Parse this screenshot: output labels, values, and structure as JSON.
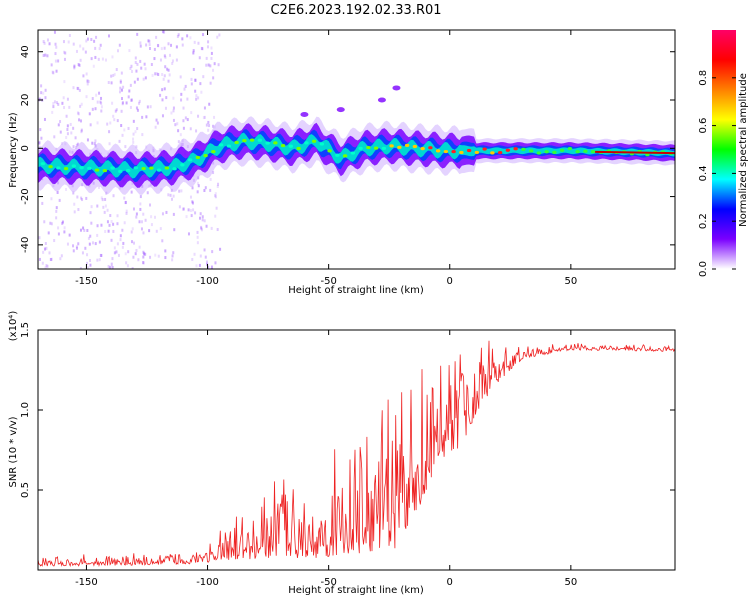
{
  "title": "C2E6.2023.192.02.33.R01",
  "chart_data": [
    {
      "type": "heatmap",
      "xlabel": "Height of straight line (km)",
      "ylabel": "Frequency (Hz)",
      "xlim": [
        -170,
        93
      ],
      "ylim": [
        -50,
        49
      ],
      "xticks": [
        -150,
        -100,
        -50,
        0,
        50
      ],
      "xtick_labels": [
        "-150",
        "-100",
        "-50",
        "0",
        "50"
      ],
      "yticks": [
        -40,
        -20,
        0,
        20,
        40
      ],
      "ytick_labels": [
        "-40",
        "-20",
        "0",
        "20",
        "40"
      ],
      "colorbar": {
        "label": "Normalized spectral amplitude",
        "range": [
          0.0,
          1.0
        ],
        "ticks": [
          0.0,
          0.2,
          0.4,
          0.6,
          0.8
        ],
        "tick_labels": [
          "0.0",
          "0.2",
          "0.4",
          "0.6",
          "0.8"
        ],
        "colormap": [
          "#ffffff",
          "#7a00ff",
          "#0000ff",
          "#00ffff",
          "#00ff00",
          "#ffff00",
          "#ff8000",
          "#ff0000",
          "#ff0066"
        ]
      },
      "band_center": [
        {
          "x": -170,
          "y": -7
        },
        {
          "x": -150,
          "y": -8
        },
        {
          "x": -130,
          "y": -9
        },
        {
          "x": -115,
          "y": -8
        },
        {
          "x": -105,
          "y": -5
        },
        {
          "x": -95,
          "y": 1
        },
        {
          "x": -85,
          "y": 3
        },
        {
          "x": -75,
          "y": 2
        },
        {
          "x": -65,
          "y": 0
        },
        {
          "x": -55,
          "y": 3
        },
        {
          "x": -45,
          "y": -4
        },
        {
          "x": -35,
          "y": 0
        },
        {
          "x": -25,
          "y": 1
        },
        {
          "x": -15,
          "y": 0
        },
        {
          "x": 0,
          "y": -1
        },
        {
          "x": 25,
          "y": -1
        },
        {
          "x": 50,
          "y": -1
        },
        {
          "x": 75,
          "y": -1.5
        },
        {
          "x": 93,
          "y": -2
        }
      ]
    },
    {
      "type": "line",
      "xlabel": "Height of straight line (km)",
      "ylabel": "SNR (10 * v/v)",
      "y_scale_label": "(x10⁴)",
      "color": "#ee2222",
      "xlim": [
        -170,
        93
      ],
      "ylim": [
        0,
        1.5
      ],
      "xticks": [
        -150,
        -100,
        -50,
        0,
        50
      ],
      "xtick_labels": [
        "-150",
        "-100",
        "-50",
        "0",
        "50"
      ],
      "yticks": [
        0.5,
        1.0,
        1.5
      ],
      "ytick_labels": [
        "0.5",
        "1.0",
        "1.5"
      ],
      "envelope": [
        {
          "x": -170,
          "base": 0.03,
          "amp": 0.04
        },
        {
          "x": -120,
          "base": 0.04,
          "amp": 0.06
        },
        {
          "x": -105,
          "base": 0.05,
          "amp": 0.08
        },
        {
          "x": -95,
          "base": 0.08,
          "amp": 0.14
        },
        {
          "x": -85,
          "base": 0.1,
          "amp": 0.22
        },
        {
          "x": -75,
          "base": 0.12,
          "amp": 0.35
        },
        {
          "x": -60,
          "base": 0.14,
          "amp": 0.42
        },
        {
          "x": -45,
          "base": 0.15,
          "amp": 0.5
        },
        {
          "x": -30,
          "base": 0.2,
          "amp": 0.6
        },
        {
          "x": -20,
          "base": 0.25,
          "amp": 0.7
        },
        {
          "x": -12,
          "base": 0.5,
          "amp": 0.65
        },
        {
          "x": -5,
          "base": 0.75,
          "amp": 0.5
        },
        {
          "x": 5,
          "base": 0.85,
          "amp": 0.5
        },
        {
          "x": 12,
          "base": 1.05,
          "amp": 0.3
        },
        {
          "x": 20,
          "base": 1.2,
          "amp": 0.18
        },
        {
          "x": 30,
          "base": 1.33,
          "amp": 0.06
        },
        {
          "x": 50,
          "base": 1.38,
          "amp": 0.03
        },
        {
          "x": 93,
          "base": 1.37,
          "amp": 0.03
        }
      ]
    }
  ]
}
